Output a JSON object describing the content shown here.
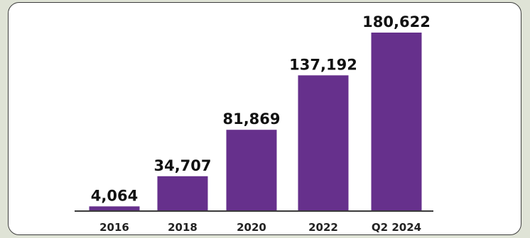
{
  "chart_data": {
    "type": "bar",
    "categories": [
      "2016",
      "2018",
      "2020",
      "2022",
      "Q2 2024"
    ],
    "values": [
      4064,
      34707,
      81869,
      137192,
      180622
    ],
    "value_labels": [
      "4,064",
      "34,707",
      "81,869",
      "137,192",
      "180,622"
    ],
    "title": "",
    "xlabel": "",
    "ylabel": "",
    "ylim": [
      0,
      180622
    ],
    "grid": false,
    "legend": "none",
    "bar_color": "#66308c",
    "axis_color": "#3a3a3a"
  }
}
